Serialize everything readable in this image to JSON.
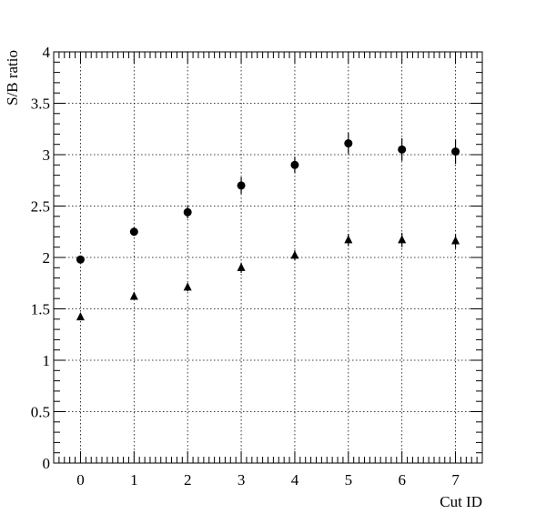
{
  "chart_data": {
    "type": "scatter",
    "title": "",
    "xlabel": "Cut ID",
    "ylabel": "S/B ratio",
    "xlim": [
      -0.5,
      7.5
    ],
    "ylim": [
      0,
      4
    ],
    "x_ticks": [
      0,
      1,
      2,
      3,
      4,
      5,
      6,
      7
    ],
    "x_tick_labels": [
      "0",
      "1",
      "2",
      "3",
      "4",
      "5",
      "6",
      "7"
    ],
    "y_ticks": [
      0,
      0.5,
      1,
      1.5,
      2,
      2.5,
      3,
      3.5,
      4
    ],
    "y_tick_labels": [
      "0",
      "0.5",
      "1",
      "1.5",
      "2",
      "2.5",
      "3",
      "3.5",
      "4"
    ],
    "grid": true,
    "legend": "none",
    "series": [
      {
        "marker": "circle",
        "color": "#000000",
        "x": [
          0,
          1,
          2,
          3,
          4,
          5,
          6,
          7
        ],
        "y": [
          1.98,
          2.25,
          2.44,
          2.7,
          2.9,
          3.11,
          3.05,
          3.03
        ],
        "yerr": [
          0.03,
          0.04,
          0.06,
          0.08,
          0.08,
          0.1,
          0.11,
          0.12
        ]
      },
      {
        "marker": "triangle",
        "color": "#000000",
        "x": [
          0,
          1,
          2,
          3,
          4,
          5,
          6,
          7
        ],
        "y": [
          1.42,
          1.62,
          1.71,
          1.9,
          2.02,
          2.17,
          2.17,
          2.16
        ],
        "yerr": [
          0.02,
          0.02,
          0.04,
          0.05,
          0.05,
          0.06,
          0.07,
          0.07
        ]
      }
    ]
  }
}
